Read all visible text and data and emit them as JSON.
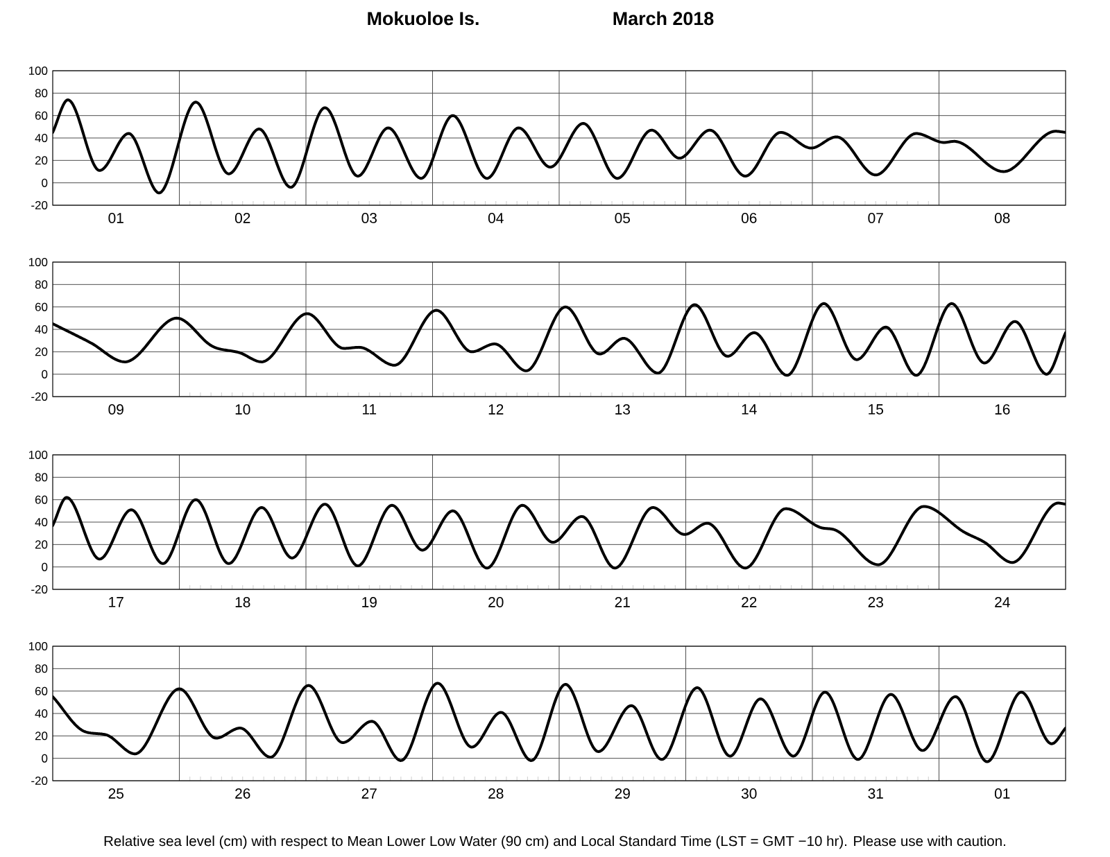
{
  "chart_data": [
    {
      "type": "line",
      "title": "Mokuoloe Is.",
      "subtitle": "March 2018",
      "color": "#000000",
      "grid": true,
      "xlim": [
        "2018-03-01",
        "2018-03-09"
      ],
      "ylim": [
        -20,
        100
      ],
      "yticks": [
        -20,
        0,
        20,
        40,
        60,
        80,
        100
      ],
      "xticks": [
        {
          "value": "2018-03-02",
          "label": null
        },
        {
          "value": "2018-03-03",
          "label": null
        },
        {
          "value": "2018-03-04",
          "label": null
        },
        {
          "value": "2018-03-05",
          "label": null
        },
        {
          "value": "2018-03-06",
          "label": null
        },
        {
          "value": "2018-03-07",
          "label": null
        },
        {
          "value": "2018-03-08",
          "label": null
        },
        {
          "value": "2018-03-01T12:00",
          "label": "01"
        },
        {
          "value": "2018-03-02T12:00",
          "label": "02"
        },
        {
          "value": "2018-03-03T12:00",
          "label": "03"
        },
        {
          "value": "2018-03-04T12:00",
          "label": "04"
        },
        {
          "value": "2018-03-05T12:00",
          "label": "05"
        },
        {
          "value": "2018-03-06T12:00",
          "label": "06"
        },
        {
          "value": "2018-03-07T12:00",
          "label": "07"
        },
        {
          "value": "2018-03-08T12:00",
          "label": "08"
        }
      ],
      "x": [
        "2018-03-01T00:00",
        "2018-03-01T02:53",
        "2018-03-01T08:53",
        "2018-03-01T14:24",
        "2018-03-01T20:10",
        "2018-03-02T03:07",
        "2018-03-02T09:22",
        "2018-03-02T15:07",
        "2018-03-02T21:07",
        "2018-03-03T03:36",
        "2018-03-03T09:50",
        "2018-03-03T15:36",
        "2018-03-03T21:50",
        "2018-03-04T03:50",
        "2018-03-04T10:19",
        "2018-03-04T16:19",
        "2018-03-04T22:19",
        "2018-03-05T04:34",
        "2018-03-05T11:02",
        "2018-03-05T17:31",
        "2018-03-05T22:48",
        "2018-03-06T04:34",
        "2018-03-06T11:17",
        "2018-03-06T18:00",
        "2018-03-06T23:46",
        "2018-03-07T04:34",
        "2018-03-07T12:00",
        "2018-03-07T19:41",
        "2018-03-08T00:58",
        "2018-03-08T02:53",
        "2018-03-08T12:14",
        "2018-03-08T22:05",
        "2018-03-09T00:00"
      ],
      "values": [
        45,
        74,
        11,
        44,
        -9,
        72,
        8,
        48,
        -4,
        67,
        6,
        49,
        4,
        60,
        4,
        49,
        14,
        53,
        4,
        47,
        22,
        47,
        6,
        45,
        31,
        41,
        7,
        44,
        36,
        37,
        10,
        46,
        45
      ]
    },
    {
      "type": "line",
      "color": "#000000",
      "grid": true,
      "xlim": [
        "2018-03-09",
        "2018-03-17"
      ],
      "ylim": [
        -20,
        100
      ],
      "yticks": [
        -20,
        0,
        20,
        40,
        60,
        80,
        100
      ],
      "xticks": [
        {
          "value": "2018-03-10",
          "label": null
        },
        {
          "value": "2018-03-11",
          "label": null
        },
        {
          "value": "2018-03-12",
          "label": null
        },
        {
          "value": "2018-03-13",
          "label": null
        },
        {
          "value": "2018-03-14",
          "label": null
        },
        {
          "value": "2018-03-15",
          "label": null
        },
        {
          "value": "2018-03-16",
          "label": null
        },
        {
          "value": "2018-03-09T12:00",
          "label": "09"
        },
        {
          "value": "2018-03-10T12:00",
          "label": "10"
        },
        {
          "value": "2018-03-11T12:00",
          "label": "11"
        },
        {
          "value": "2018-03-12T12:00",
          "label": "12"
        },
        {
          "value": "2018-03-13T12:00",
          "label": "13"
        },
        {
          "value": "2018-03-14T12:00",
          "label": "14"
        },
        {
          "value": "2018-03-15T12:00",
          "label": "15"
        },
        {
          "value": "2018-03-16T12:00",
          "label": "16"
        }
      ],
      "x": [
        "2018-03-09T00:00",
        "2018-03-09T07:12",
        "2018-03-09T13:41",
        "2018-03-09T23:31",
        "2018-03-10T06:14",
        "2018-03-10T11:31",
        "2018-03-10T15:36",
        "2018-03-11T00:14",
        "2018-03-11T07:12",
        "2018-03-11T10:05",
        "2018-03-11T16:48",
        "2018-03-12T00:43",
        "2018-03-12T07:26",
        "2018-03-12T11:46",
        "2018-03-12T17:46",
        "2018-03-13T01:12",
        "2018-03-13T07:41",
        "2018-03-13T12:14",
        "2018-03-13T18:43",
        "2018-03-14T01:41",
        "2018-03-14T07:55",
        "2018-03-14T12:58",
        "2018-03-14T19:12",
        "2018-03-15T02:10",
        "2018-03-15T08:24",
        "2018-03-15T13:55",
        "2018-03-15T19:41",
        "2018-03-16T02:24",
        "2018-03-16T08:38",
        "2018-03-16T14:24",
        "2018-03-16T20:24",
        "2018-03-17T00:00"
      ],
      "values": [
        45,
        28,
        11,
        50,
        25,
        19,
        11,
        54,
        23,
        24,
        8,
        57,
        20,
        27,
        3,
        60,
        18,
        32,
        1,
        62,
        16,
        37,
        -1,
        63,
        13,
        42,
        -1,
        63,
        10,
        47,
        0,
        37
      ]
    },
    {
      "type": "line",
      "color": "#000000",
      "grid": true,
      "xlim": [
        "2018-03-17",
        "2018-03-25"
      ],
      "ylim": [
        -20,
        100
      ],
      "yticks": [
        -20,
        0,
        20,
        40,
        60,
        80,
        100
      ],
      "xticks": [
        {
          "value": "2018-03-18",
          "label": null
        },
        {
          "value": "2018-03-19",
          "label": null
        },
        {
          "value": "2018-03-20",
          "label": null
        },
        {
          "value": "2018-03-21",
          "label": null
        },
        {
          "value": "2018-03-22",
          "label": null
        },
        {
          "value": "2018-03-23",
          "label": null
        },
        {
          "value": "2018-03-24",
          "label": null
        },
        {
          "value": "2018-03-17T12:00",
          "label": "17"
        },
        {
          "value": "2018-03-18T12:00",
          "label": "18"
        },
        {
          "value": "2018-03-19T12:00",
          "label": "19"
        },
        {
          "value": "2018-03-20T12:00",
          "label": "20"
        },
        {
          "value": "2018-03-21T12:00",
          "label": "21"
        },
        {
          "value": "2018-03-22T12:00",
          "label": "22"
        },
        {
          "value": "2018-03-23T12:00",
          "label": "23"
        },
        {
          "value": "2018-03-24T12:00",
          "label": "24"
        }
      ],
      "x": [
        "2018-03-17T00:00",
        "2018-03-17T02:38",
        "2018-03-17T08:53",
        "2018-03-17T14:53",
        "2018-03-17T20:53",
        "2018-03-18T03:07",
        "2018-03-18T09:22",
        "2018-03-18T15:36",
        "2018-03-18T21:22",
        "2018-03-19T03:36",
        "2018-03-19T09:50",
        "2018-03-19T16:19",
        "2018-03-19T22:05",
        "2018-03-20T03:50",
        "2018-03-20T10:19",
        "2018-03-20T17:02",
        "2018-03-20T22:48",
        "2018-03-21T04:19",
        "2018-03-21T10:34",
        "2018-03-21T17:46",
        "2018-03-21T23:46",
        "2018-03-22T04:05",
        "2018-03-22T11:17",
        "2018-03-22T18:58",
        "2018-03-23T01:41",
        "2018-03-23T04:19",
        "2018-03-23T12:29",
        "2018-03-23T21:07",
        "2018-03-24T04:48",
        "2018-03-24T08:38",
        "2018-03-24T13:55",
        "2018-03-24T22:34",
        "2018-03-25T00:00"
      ],
      "values": [
        37,
        62,
        7,
        51,
        3,
        60,
        3,
        53,
        8,
        56,
        1,
        55,
        15,
        50,
        -1,
        55,
        22,
        45,
        -1,
        53,
        29,
        39,
        -1,
        52,
        35,
        33,
        2,
        54,
        31,
        22,
        4,
        57,
        56
      ]
    },
    {
      "type": "line",
      "color": "#000000",
      "grid": true,
      "xlim": [
        "2018-03-25",
        "2018-04-02"
      ],
      "ylim": [
        -20,
        100
      ],
      "yticks": [
        -20,
        0,
        20,
        40,
        60,
        80,
        100
      ],
      "xticks": [
        {
          "value": "2018-03-26",
          "label": null
        },
        {
          "value": "2018-03-27",
          "label": null
        },
        {
          "value": "2018-03-28",
          "label": null
        },
        {
          "value": "2018-03-29",
          "label": null
        },
        {
          "value": "2018-03-30",
          "label": null
        },
        {
          "value": "2018-03-31",
          "label": null
        },
        {
          "value": "2018-04-01",
          "label": null
        },
        {
          "value": "2018-03-25T12:00",
          "label": "25"
        },
        {
          "value": "2018-03-26T12:00",
          "label": "26"
        },
        {
          "value": "2018-03-27T12:00",
          "label": "27"
        },
        {
          "value": "2018-03-28T12:00",
          "label": "28"
        },
        {
          "value": "2018-03-29T12:00",
          "label": "29"
        },
        {
          "value": "2018-03-30T12:00",
          "label": "30"
        },
        {
          "value": "2018-03-31T12:00",
          "label": "31"
        },
        {
          "value": "2018-04-01T12:00",
          "label": "01"
        }
      ],
      "x": [
        "2018-03-25T00:00",
        "2018-03-25T06:00",
        "2018-03-25T10:05",
        "2018-03-25T15:36",
        "2018-03-26T00:00",
        "2018-03-26T06:58",
        "2018-03-26T11:31",
        "2018-03-26T17:17",
        "2018-03-27T00:29",
        "2018-03-27T06:58",
        "2018-03-27T12:29",
        "2018-03-27T18:00",
        "2018-03-28T00:58",
        "2018-03-28T07:26",
        "2018-03-28T12:58",
        "2018-03-28T18:43",
        "2018-03-29T01:12",
        "2018-03-29T07:26",
        "2018-03-29T13:41",
        "2018-03-29T19:26",
        "2018-03-30T02:10",
        "2018-03-30T08:24",
        "2018-03-30T14:10",
        "2018-03-30T20:24",
        "2018-03-31T02:24",
        "2018-03-31T08:38",
        "2018-03-31T14:53",
        "2018-03-31T20:53",
        "2018-04-01T03:07",
        "2018-04-01T09:07",
        "2018-04-01T15:36",
        "2018-04-01T21:22",
        "2018-04-02T00:00"
      ],
      "values": [
        55,
        24,
        21,
        4,
        62,
        18,
        27,
        1,
        65,
        14,
        33,
        -2,
        67,
        10,
        41,
        -2,
        66,
        6,
        47,
        -1,
        63,
        2,
        53,
        2,
        59,
        -1,
        57,
        7,
        55,
        -3,
        59,
        13,
        27
      ],
      "annotations": [
        "Relative sea level (cm) with respect to Mean Lower Low Water (90 cm) and Local Standard Time (LST = GMT −10 hr). Please use with caution."
      ]
    }
  ]
}
